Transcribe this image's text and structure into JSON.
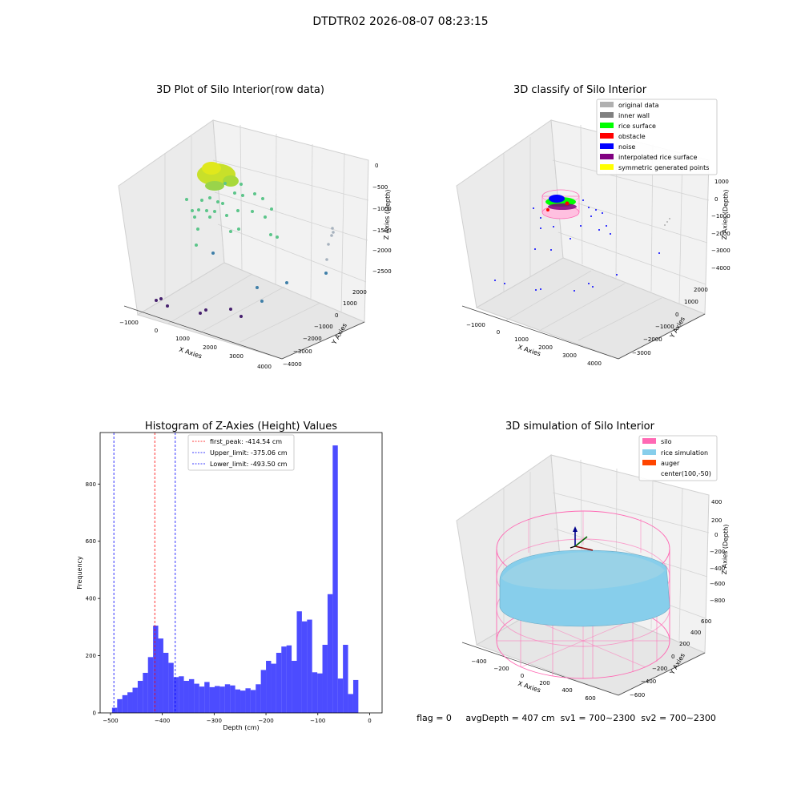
{
  "figure": {
    "suptitle": "DTDTR02 2026-08-07 08:23:15",
    "footer": "flag = 0     avgDepth = 407 cm  sv1 = 700~2300  sv2 = 700~2300"
  },
  "chart_data": [
    {
      "type": "scatter",
      "title": "3D Plot of Silo Interior(row data)",
      "xlabel": "X Axies",
      "ylabel": "Y Axies",
      "zlabel": "Z Axies (Depth)",
      "x_ticks": [
        "−1000",
        "0",
        "1000",
        "2000",
        "3000",
        "4000"
      ],
      "y_ticks": [
        "2000",
        "1000",
        "0",
        "−1000",
        "−2000",
        "−3000",
        "−4000"
      ],
      "z_ticks": [
        "0",
        "−500",
        "−1000",
        "−1500",
        "−2000",
        "−2500"
      ],
      "colors": {
        "surface": "#c8e02a",
        "mid": "#5cc58a",
        "low": "#3f7fa8",
        "deep": "#46206e"
      }
    },
    {
      "type": "scatter",
      "title": "3D classify of Silo Interior",
      "xlabel": "X Axies",
      "ylabel": "Y Axies",
      "zlabel": "Z Axies (Depth)",
      "x_ticks": [
        "−1000",
        "0",
        "1000",
        "2000",
        "3000",
        "4000"
      ],
      "y_ticks": [
        "2000",
        "1000",
        "0",
        "−1000",
        "−2000",
        "−3000"
      ],
      "z_ticks": [
        "1000",
        "0",
        "−1000",
        "−2000",
        "−3000",
        "−4000"
      ],
      "legend": [
        {
          "label": "original data",
          "color": "#b0b0b0"
        },
        {
          "label": "inner wall",
          "color": "#808080"
        },
        {
          "label": "rice surface",
          "color": "#00ff00"
        },
        {
          "label": "obstacle",
          "color": "#ff0000"
        },
        {
          "label": "noise",
          "color": "#0000ff"
        },
        {
          "label": "interpolated rice surface",
          "color": "#800080"
        },
        {
          "label": "symmetric generated points",
          "color": "#ffff00"
        }
      ],
      "legend_position": "upper-right"
    },
    {
      "type": "bar",
      "title": "Histogram of Z-Axies (Height) Values",
      "xlabel": "Depth (cm)",
      "ylabel": "Frequency",
      "bar_color": "#0000ff",
      "x_ticks": [
        -500,
        -400,
        -300,
        -200,
        -100,
        0
      ],
      "x_tick_labels": [
        "−500",
        "−400",
        "−300",
        "−200",
        "−100",
        "0"
      ],
      "y_ticks": [
        0,
        200,
        400,
        600,
        800
      ],
      "xlim": [
        -520,
        24
      ],
      "ylim": [
        0,
        980
      ],
      "bin_start": -497,
      "bin_width": 9.9,
      "values": [
        18,
        48,
        62,
        72,
        88,
        112,
        140,
        195,
        305,
        260,
        210,
        175,
        125,
        128,
        112,
        118,
        102,
        92,
        108,
        90,
        94,
        92,
        100,
        96,
        82,
        78,
        86,
        80,
        100,
        150,
        182,
        172,
        210,
        232,
        236,
        182,
        355,
        320,
        326,
        142,
        138,
        238,
        415,
        935,
        120,
        238,
        66,
        115
      ],
      "vlines": [
        {
          "label": "first_peak: -414.54 cm",
          "x": -414.54,
          "color": "#ff0000"
        },
        {
          "label": "Upper_limit: -375.06 cm",
          "x": -375.06,
          "color": "#0000ff"
        },
        {
          "label": "Lower_limit: -493.50 cm",
          "x": -493.5,
          "color": "#0000ff"
        }
      ],
      "legend_position": "upper-center"
    },
    {
      "type": "surface",
      "title": "3D simulation of Silo Interior",
      "xlabel": "X Axies",
      "ylabel": "Y Axies",
      "zlabel": "Z Axies (Depth)",
      "x_ticks": [
        "−400",
        "−200",
        "0",
        "200",
        "400",
        "600"
      ],
      "y_ticks": [
        "600",
        "400",
        "200",
        "0",
        "−200",
        "−400",
        "−600"
      ],
      "z_ticks": [
        "400",
        "200",
        "0",
        "−200",
        "−400",
        "−600",
        "−800"
      ],
      "legend": [
        {
          "label": "silo",
          "color": "#ff69b4"
        },
        {
          "label": "rice simulation",
          "color": "#87ceeb"
        },
        {
          "label": "auger",
          "color": "#ff4500"
        },
        {
          "label": "center(100,-50)",
          "color": ""
        }
      ],
      "legend_position": "upper-right"
    }
  ]
}
